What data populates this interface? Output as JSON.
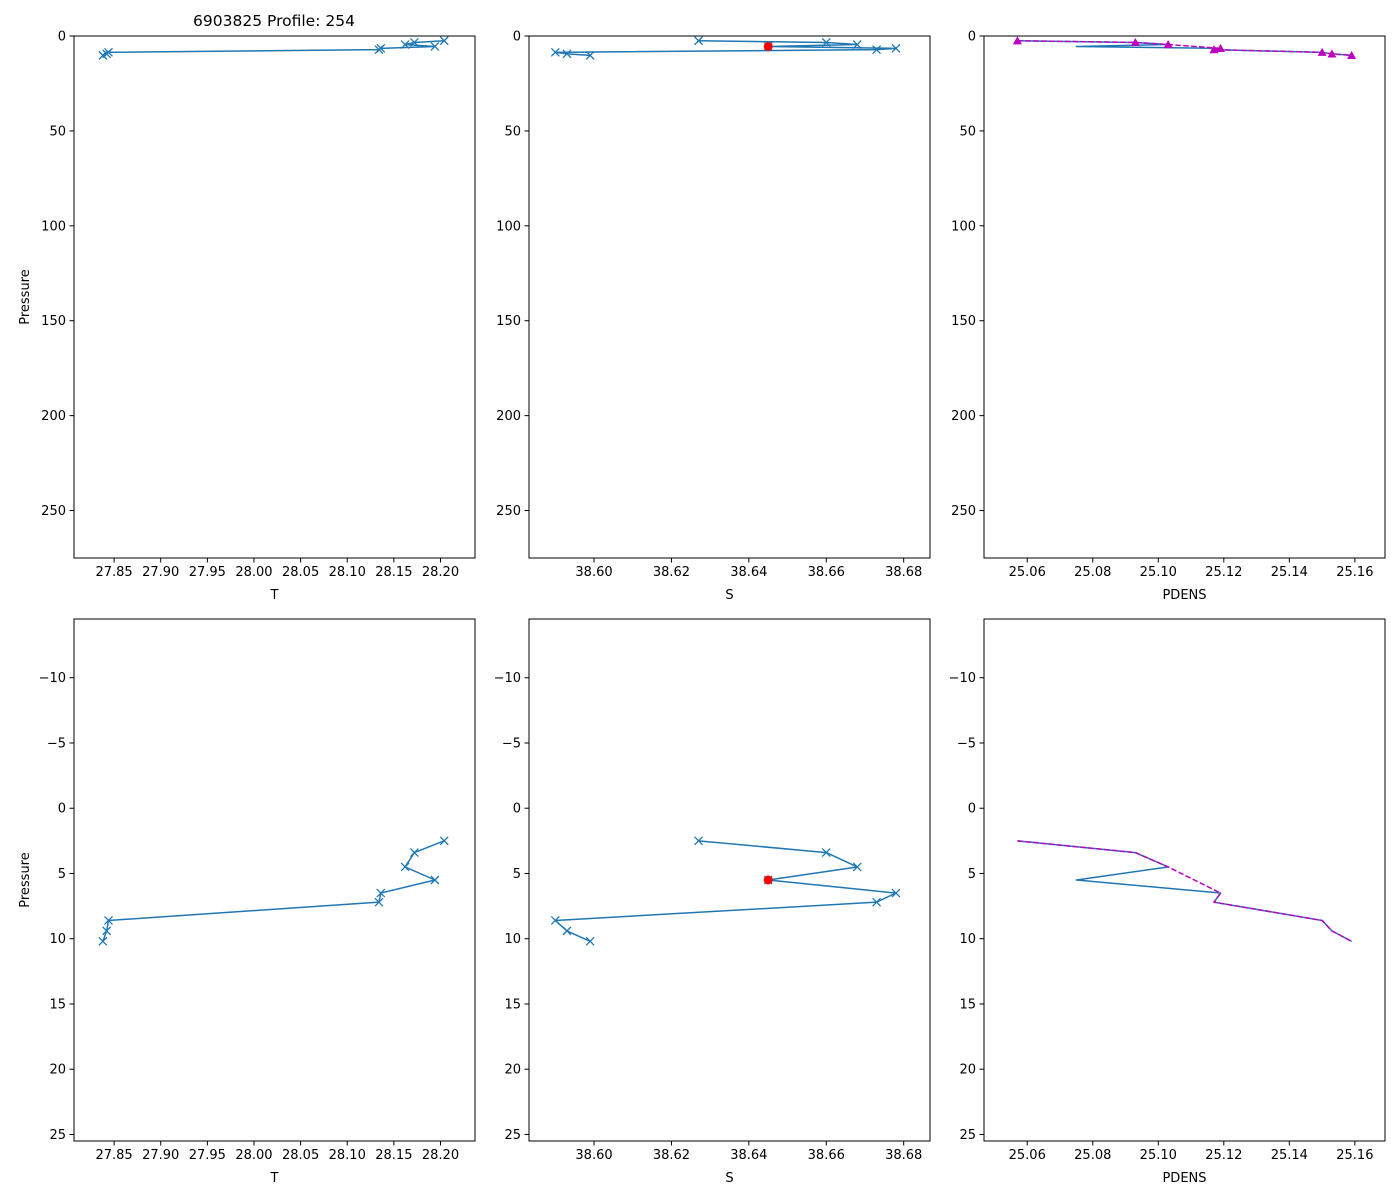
{
  "figure_title": "6903825 Profile: 254",
  "colors": {
    "series": "#1f77b4",
    "highlight": "#ff0000",
    "pdens_alt": "#bf00bf"
  },
  "chart_data": [
    {
      "type": "line",
      "panel": "top-left",
      "xlabel": "T",
      "ylabel": "Pressure",
      "xlim": [
        27.807,
        28.237
      ],
      "ylim": [
        275,
        0
      ],
      "xticks": [
        27.85,
        27.9,
        27.95,
        28.0,
        28.05,
        28.1,
        28.15,
        28.2
      ],
      "xtick_labels": [
        "27.85",
        "27.90",
        "27.95",
        "28.00",
        "28.05",
        "28.10",
        "28.15",
        "28.20"
      ],
      "yticks": [
        0,
        50,
        100,
        150,
        200,
        250
      ],
      "ytick_labels": [
        "0",
        "50",
        "100",
        "150",
        "200",
        "250"
      ],
      "series": [
        {
          "name": "T",
          "marker": "x",
          "x": [
            28.204,
            28.172,
            28.162,
            28.194,
            28.136,
            28.134,
            27.844,
            27.842,
            27.838
          ],
          "y": [
            2.5,
            3.4,
            4.5,
            5.5,
            6.5,
            7.2,
            8.6,
            9.4,
            10.2
          ]
        }
      ]
    },
    {
      "type": "line",
      "panel": "top-center",
      "xlabel": "S",
      "ylabel": "",
      "xlim": [
        38.5832,
        38.6868
      ],
      "ylim": [
        275,
        0
      ],
      "xticks": [
        38.6,
        38.62,
        38.64,
        38.66,
        38.68
      ],
      "xtick_labels": [
        "38.60",
        "38.62",
        "38.64",
        "38.66",
        "38.68"
      ],
      "yticks": [
        0,
        50,
        100,
        150,
        200,
        250
      ],
      "ytick_labels": [
        "0",
        "50",
        "100",
        "150",
        "200",
        "250"
      ],
      "series": [
        {
          "name": "S",
          "marker": "x",
          "x": [
            38.627,
            38.66,
            38.668,
            38.645,
            38.678,
            38.673,
            38.59,
            38.593,
            38.599
          ],
          "y": [
            2.5,
            3.4,
            4.5,
            5.5,
            6.5,
            7.2,
            8.6,
            9.4,
            10.2
          ]
        },
        {
          "name": "flagged",
          "marker": "dot",
          "x": [
            38.645
          ],
          "y": [
            5.5
          ]
        }
      ]
    },
    {
      "type": "line",
      "panel": "top-right",
      "xlabel": "PDENS",
      "ylabel": "",
      "xlim": [
        25.0468,
        25.1692
      ],
      "ylim": [
        275,
        0
      ],
      "xticks": [
        25.06,
        25.08,
        25.1,
        25.12,
        25.14,
        25.16
      ],
      "xtick_labels": [
        "25.06",
        "25.08",
        "25.10",
        "25.12",
        "25.14",
        "25.16"
      ],
      "yticks": [
        0,
        50,
        100,
        150,
        200,
        250
      ],
      "ytick_labels": [
        "0",
        "50",
        "100",
        "150",
        "200",
        "250"
      ],
      "series": [
        {
          "name": "PDENS",
          "marker": "none",
          "x": [
            25.057,
            25.093,
            25.103,
            25.075,
            25.119,
            25.117,
            25.15,
            25.153,
            25.159
          ],
          "y": [
            2.5,
            3.4,
            4.5,
            5.5,
            6.5,
            7.2,
            8.6,
            9.4,
            10.2
          ]
        },
        {
          "name": "PDENS (excluding flagged)",
          "marker": "triangle",
          "dashed": true,
          "x": [
            25.057,
            25.093,
            25.103,
            25.119,
            25.117,
            25.15,
            25.153,
            25.159
          ],
          "y": [
            2.5,
            3.4,
            4.5,
            6.5,
            7.2,
            8.6,
            9.4,
            10.2
          ]
        }
      ]
    },
    {
      "type": "line",
      "panel": "bottom-left",
      "xlabel": "T",
      "ylabel": "Pressure",
      "xlim": [
        27.807,
        28.237
      ],
      "ylim": [
        25.5,
        -14.5
      ],
      "xticks": [
        27.85,
        27.9,
        27.95,
        28.0,
        28.05,
        28.1,
        28.15,
        28.2
      ],
      "xtick_labels": [
        "27.85",
        "27.90",
        "27.95",
        "28.00",
        "28.05",
        "28.10",
        "28.15",
        "28.20"
      ],
      "yticks": [
        -10,
        -5,
        0,
        5,
        10,
        15,
        20,
        25
      ],
      "ytick_labels": [
        "−10",
        "−5",
        "0",
        "5",
        "10",
        "15",
        "20",
        "25"
      ],
      "series": [
        {
          "name": "T",
          "marker": "x",
          "x": [
            28.204,
            28.172,
            28.162,
            28.194,
            28.136,
            28.134,
            27.844,
            27.842,
            27.838
          ],
          "y": [
            2.5,
            3.4,
            4.5,
            5.5,
            6.5,
            7.2,
            8.6,
            9.4,
            10.2
          ]
        }
      ]
    },
    {
      "type": "line",
      "panel": "bottom-center",
      "xlabel": "S",
      "ylabel": "",
      "xlim": [
        38.5832,
        38.6868
      ],
      "ylim": [
        25.5,
        -14.5
      ],
      "xticks": [
        38.6,
        38.62,
        38.64,
        38.66,
        38.68
      ],
      "xtick_labels": [
        "38.60",
        "38.62",
        "38.64",
        "38.66",
        "38.68"
      ],
      "yticks": [
        -10,
        -5,
        0,
        5,
        10,
        15,
        20,
        25
      ],
      "ytick_labels": [
        "−10",
        "−5",
        "0",
        "5",
        "10",
        "15",
        "20",
        "25"
      ],
      "series": [
        {
          "name": "S",
          "marker": "x",
          "x": [
            38.627,
            38.66,
            38.668,
            38.645,
            38.678,
            38.673,
            38.59,
            38.593,
            38.599
          ],
          "y": [
            2.5,
            3.4,
            4.5,
            5.5,
            6.5,
            7.2,
            8.6,
            9.4,
            10.2
          ]
        },
        {
          "name": "flagged",
          "marker": "dot",
          "x": [
            38.645
          ],
          "y": [
            5.5
          ]
        }
      ]
    },
    {
      "type": "line",
      "panel": "bottom-right",
      "xlabel": "PDENS",
      "ylabel": "",
      "xlim": [
        25.0468,
        25.1692
      ],
      "ylim": [
        25.5,
        -14.5
      ],
      "xticks": [
        25.06,
        25.08,
        25.1,
        25.12,
        25.14,
        25.16
      ],
      "xtick_labels": [
        "25.06",
        "25.08",
        "25.10",
        "25.12",
        "25.14",
        "25.16"
      ],
      "yticks": [
        -10,
        -5,
        0,
        5,
        10,
        15,
        20,
        25
      ],
      "ytick_labels": [
        "−10",
        "−5",
        "0",
        "5",
        "10",
        "15",
        "20",
        "25"
      ],
      "series": [
        {
          "name": "PDENS",
          "marker": "none",
          "x": [
            25.057,
            25.093,
            25.103,
            25.075,
            25.119,
            25.117,
            25.15,
            25.153,
            25.159
          ],
          "y": [
            2.5,
            3.4,
            4.5,
            5.5,
            6.5,
            7.2,
            8.6,
            9.4,
            10.2
          ]
        },
        {
          "name": "PDENS (excluding flagged)",
          "marker": "none",
          "dashed": true,
          "x": [
            25.057,
            25.093,
            25.103,
            25.119,
            25.117,
            25.15,
            25.153,
            25.159
          ],
          "y": [
            2.5,
            3.4,
            4.5,
            6.5,
            7.2,
            8.6,
            9.4,
            10.2
          ]
        }
      ]
    }
  ]
}
